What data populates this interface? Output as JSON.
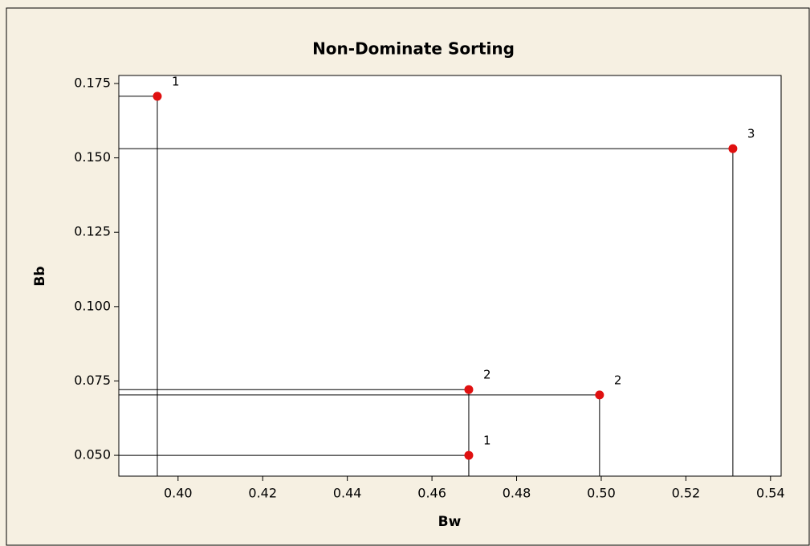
{
  "chart_data": {
    "type": "scatter",
    "title": "Non-Dominate Sorting",
    "x_label": "Bw",
    "y_label": "Bb",
    "x": [
      0.3951,
      0.5311,
      0.4687,
      0.4996,
      0.4687
    ],
    "values": [
      0.1707,
      0.1531,
      0.0721,
      0.0703,
      0.05
    ],
    "labels": [
      "1",
      "3",
      "2",
      "2",
      "1"
    ],
    "color": "#e01010",
    "drop_lines": true,
    "xlim": [
      0.386,
      0.5425
    ],
    "ylim": [
      0.043,
      0.1777
    ],
    "xticks": [
      {
        "value": 0.4,
        "label": "0.40"
      },
      {
        "value": 0.42,
        "label": "0.42"
      },
      {
        "value": 0.44,
        "label": "0.44"
      },
      {
        "value": 0.46,
        "label": "0.46"
      },
      {
        "value": 0.48,
        "label": "0.48"
      },
      {
        "value": 0.5,
        "label": "0.50"
      },
      {
        "value": 0.52,
        "label": "0.52"
      },
      {
        "value": 0.54,
        "label": "0.54"
      }
    ],
    "yticks": [
      {
        "value": 0.05,
        "label": "0.050"
      },
      {
        "value": 0.075,
        "label": "0.075"
      },
      {
        "value": 0.1,
        "label": "0.100"
      },
      {
        "value": 0.125,
        "label": "0.125"
      },
      {
        "value": 0.15,
        "label": "0.150"
      },
      {
        "value": 0.175,
        "label": "0.175"
      }
    ]
  }
}
